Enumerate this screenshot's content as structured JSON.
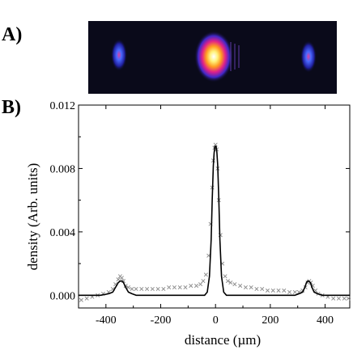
{
  "panels": {
    "a_label": "A)",
    "b_label": "B)"
  },
  "image_panel": {
    "background": "#0a0a1a",
    "spots": [
      {
        "name": "left-satellite",
        "intensity": 0.35
      },
      {
        "name": "central-peak",
        "intensity": 1.0
      },
      {
        "name": "right-satellite",
        "intensity": 0.35
      }
    ]
  },
  "chart_data": {
    "type": "line",
    "xlabel": "distance (µm)",
    "ylabel": "density (Arb. units)",
    "xlim": [
      -500,
      490
    ],
    "ylim": [
      -0.0008,
      0.012
    ],
    "x_ticks": [
      -400,
      -200,
      0,
      200,
      400
    ],
    "x_tick_labels": [
      "-400",
      "-200",
      "0",
      "200",
      "400"
    ],
    "y_ticks": [
      0.0,
      0.004,
      0.008,
      0.012
    ],
    "y_tick_labels": [
      "0.000",
      "0.004",
      "0.008",
      "0.012"
    ],
    "series": [
      {
        "style": "markers",
        "marker": "x",
        "color": "#888888",
        "x": [
          -490,
          -470,
          -450,
          -430,
          -410,
          -390,
          -375,
          -365,
          -355,
          -348,
          -342,
          -336,
          -328,
          -318,
          -305,
          -290,
          -270,
          -250,
          -230,
          -210,
          -190,
          -170,
          -150,
          -130,
          -110,
          -90,
          -70,
          -55,
          -45,
          -35,
          -25,
          -18,
          -12,
          -8,
          -4,
          0,
          4,
          8,
          12,
          18,
          25,
          35,
          45,
          55,
          70,
          90,
          110,
          130,
          150,
          170,
          190,
          210,
          230,
          250,
          270,
          290,
          305,
          318,
          328,
          336,
          342,
          348,
          355,
          365,
          375,
          390,
          410,
          430,
          450,
          470,
          485
        ],
        "y": [
          -0.0003,
          -0.0002,
          -0.0001,
          0.0,
          0.0001,
          0.0002,
          0.0004,
          0.0007,
          0.001,
          0.0012,
          0.0011,
          0.0009,
          0.0006,
          0.0005,
          0.0004,
          0.0004,
          0.0004,
          0.0004,
          0.0004,
          0.0004,
          0.0004,
          0.0005,
          0.0005,
          0.0005,
          0.0005,
          0.0006,
          0.0006,
          0.0007,
          0.0009,
          0.0013,
          0.0025,
          0.0045,
          0.0068,
          0.0085,
          0.0093,
          0.0095,
          0.0092,
          0.008,
          0.006,
          0.0038,
          0.002,
          0.0012,
          0.0009,
          0.0008,
          0.0007,
          0.0006,
          0.0005,
          0.0005,
          0.0004,
          0.0004,
          0.0003,
          0.0003,
          0.0003,
          0.0003,
          0.0002,
          0.0002,
          0.0002,
          0.0003,
          0.0005,
          0.0008,
          0.0009,
          0.0008,
          0.0006,
          0.0003,
          0.0001,
          0.0,
          -0.0001,
          -0.0002,
          -0.0002,
          -0.0002,
          -0.0002
        ]
      },
      {
        "style": "line",
        "color": "#000000",
        "x": [
          -500,
          -420,
          -390,
          -375,
          -365,
          -355,
          -348,
          -342,
          -336,
          -328,
          -318,
          -305,
          -290,
          -260,
          -150,
          -60,
          -40,
          -30,
          -22,
          -16,
          -12,
          -8,
          -5,
          -2,
          0,
          2,
          5,
          8,
          12,
          16,
          22,
          30,
          40,
          60,
          150,
          290,
          305,
          318,
          326,
          332,
          336,
          340,
          346,
          352,
          360,
          372,
          390,
          420,
          490
        ],
        "y": [
          0.0,
          0.0,
          0.0001,
          0.0002,
          0.0005,
          0.0008,
          0.0009,
          0.0009,
          0.0008,
          0.0005,
          0.0002,
          0.0001,
          0.0,
          0.0,
          0.0,
          0.0,
          0.0,
          0.0002,
          0.0012,
          0.0035,
          0.006,
          0.0082,
          0.009,
          0.0094,
          0.0094,
          0.0094,
          0.009,
          0.0082,
          0.006,
          0.0035,
          0.0012,
          0.0002,
          0.0,
          0.0,
          0.0,
          0.0,
          0.0001,
          0.0002,
          0.0005,
          0.0008,
          0.0009,
          0.0009,
          0.0008,
          0.0005,
          0.0002,
          0.0001,
          0.0,
          0.0,
          0.0
        ]
      }
    ]
  }
}
